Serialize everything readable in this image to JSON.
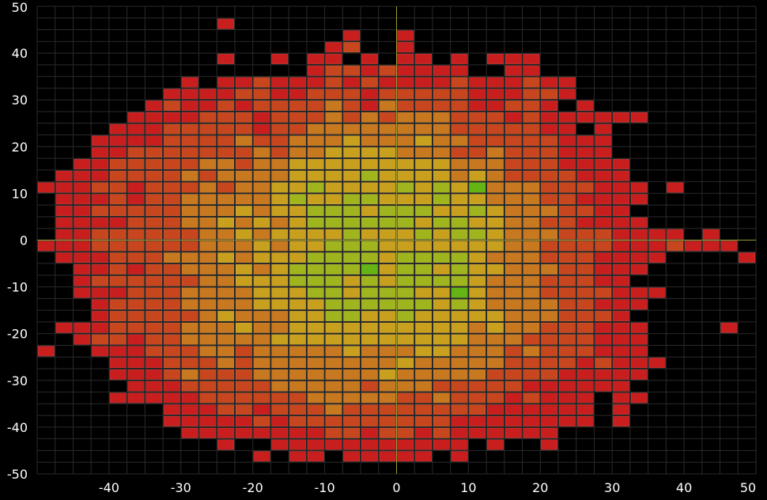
{
  "chart_data": {
    "type": "heatmap",
    "title": "",
    "xlabel": "",
    "ylabel": "",
    "xlim": [
      -50,
      50
    ],
    "ylim": [
      -50,
      50
    ],
    "bin_size": 2.5,
    "grid": true,
    "background": "#000000",
    "grid_color": "#2a2a2a",
    "colorscale": [
      "#c81e1e",
      "#c8461e",
      "#c8781e",
      "#c8a01e",
      "#a0b41e",
      "#64b414",
      "#1eb414"
    ],
    "x_ticks": [
      -40,
      -30,
      -20,
      -10,
      0,
      10,
      20,
      30,
      40,
      50
    ],
    "y_ticks": [
      50,
      40,
      30,
      20,
      10,
      0,
      -10,
      -20,
      -30,
      -40,
      -50
    ],
    "x_tick_labels": [
      "-40",
      "-30",
      "-20",
      "-10",
      "0",
      "10",
      "20",
      "30",
      "40",
      "50"
    ],
    "y_tick_labels": [
      "50",
      "40",
      "30",
      "20",
      "10",
      "0",
      "-10",
      "-20",
      "-30",
      "-40",
      "-50"
    ],
    "values": [
      [
        0,
        0,
        0,
        0,
        0,
        0,
        0,
        0,
        0,
        0,
        0,
        0,
        0,
        0,
        0,
        0,
        0,
        0,
        0,
        0,
        0,
        0,
        0,
        0,
        0,
        0,
        0,
        0,
        0,
        0,
        0,
        0,
        0,
        0,
        0,
        0,
        0,
        0,
        0,
        0
      ],
      [
        0,
        0,
        0,
        0,
        0,
        0,
        0,
        0,
        0,
        0,
        1,
        0,
        0,
        0,
        0,
        0,
        0,
        0,
        0,
        0,
        0,
        0,
        0,
        0,
        0,
        0,
        0,
        0,
        0,
        0,
        0,
        0,
        0,
        0,
        0,
        0,
        0,
        0,
        0,
        0
      ],
      [
        0,
        0,
        0,
        0,
        0,
        0,
        0,
        0,
        0,
        0,
        0,
        0,
        0,
        0,
        0,
        0,
        0,
        1,
        0,
        0,
        1,
        0,
        0,
        0,
        0,
        0,
        0,
        0,
        0,
        0,
        0,
        0,
        0,
        0,
        0,
        0,
        0,
        0,
        0,
        0
      ],
      [
        0,
        0,
        0,
        0,
        0,
        0,
        0,
        0,
        0,
        0,
        0,
        0,
        0,
        0,
        0,
        0,
        1,
        2,
        0,
        0,
        1,
        0,
        0,
        0,
        0,
        0,
        0,
        0,
        0,
        0,
        0,
        0,
        0,
        0,
        0,
        0,
        0,
        0,
        0,
        0
      ],
      [
        0,
        0,
        0,
        0,
        0,
        0,
        0,
        0,
        0,
        0,
        1,
        0,
        0,
        1,
        0,
        1,
        1,
        0,
        1,
        0,
        1,
        1,
        0,
        1,
        0,
        1,
        1,
        1,
        0,
        0,
        0,
        0,
        0,
        0,
        0,
        0,
        0,
        0,
        0,
        0
      ],
      [
        0,
        0,
        0,
        0,
        0,
        0,
        0,
        0,
        0,
        0,
        0,
        0,
        0,
        0,
        0,
        1,
        2,
        2,
        1,
        2,
        1,
        1,
        1,
        1,
        0,
        0,
        1,
        1,
        0,
        0,
        0,
        0,
        0,
        0,
        0,
        0,
        0,
        0,
        0,
        0
      ],
      [
        0,
        0,
        0,
        0,
        0,
        0,
        0,
        0,
        1,
        0,
        1,
        1,
        2,
        1,
        1,
        1,
        2,
        1,
        2,
        1,
        1,
        1,
        1,
        2,
        1,
        1,
        1,
        2,
        1,
        1,
        0,
        0,
        0,
        0,
        0,
        0,
        0,
        0,
        0,
        0
      ],
      [
        0,
        0,
        0,
        0,
        0,
        0,
        0,
        1,
        1,
        1,
        1,
        2,
        2,
        1,
        1,
        2,
        2,
        2,
        1,
        2,
        2,
        2,
        2,
        2,
        1,
        1,
        1,
        2,
        2,
        1,
        0,
        0,
        0,
        0,
        0,
        0,
        0,
        0,
        0,
        0
      ],
      [
        0,
        0,
        0,
        0,
        0,
        0,
        1,
        2,
        1,
        1,
        2,
        1,
        2,
        2,
        2,
        2,
        3,
        2,
        1,
        3,
        2,
        2,
        2,
        2,
        1,
        1,
        2,
        2,
        1,
        0,
        1,
        0,
        0,
        0,
        0,
        0,
        0,
        0,
        0,
        0
      ],
      [
        0,
        0,
        0,
        0,
        0,
        1,
        1,
        1,
        1,
        2,
        2,
        2,
        1,
        2,
        2,
        2,
        3,
        2,
        3,
        2,
        3,
        3,
        3,
        2,
        2,
        2,
        1,
        2,
        1,
        1,
        1,
        1,
        1,
        1,
        0,
        0,
        0,
        0,
        0,
        0
      ],
      [
        0,
        0,
        0,
        0,
        1,
        1,
        1,
        2,
        2,
        2,
        2,
        2,
        1,
        2,
        2,
        3,
        3,
        3,
        3,
        3,
        3,
        3,
        3,
        2,
        2,
        2,
        2,
        2,
        1,
        1,
        0,
        1,
        0,
        0,
        0,
        0,
        0,
        0,
        0,
        0
      ],
      [
        0,
        0,
        0,
        1,
        1,
        1,
        1,
        2,
        2,
        2,
        2,
        3,
        2,
        2,
        3,
        3,
        3,
        4,
        3,
        3,
        3,
        4,
        3,
        3,
        2,
        2,
        2,
        2,
        2,
        1,
        1,
        1,
        0,
        0,
        0,
        0,
        0,
        0,
        0,
        0
      ],
      [
        0,
        0,
        0,
        1,
        1,
        2,
        2,
        2,
        2,
        2,
        2,
        2,
        3,
        2,
        3,
        3,
        4,
        4,
        4,
        4,
        3,
        3,
        3,
        2,
        2,
        3,
        2,
        2,
        2,
        1,
        1,
        1,
        0,
        0,
        0,
        0,
        0,
        0,
        0,
        0
      ],
      [
        0,
        0,
        1,
        1,
        2,
        2,
        2,
        2,
        2,
        3,
        3,
        2,
        3,
        3,
        4,
        4,
        4,
        4,
        4,
        4,
        4,
        4,
        4,
        3,
        3,
        3,
        2,
        2,
        2,
        1,
        1,
        1,
        1,
        0,
        0,
        0,
        0,
        0,
        0,
        0
      ],
      [
        0,
        1,
        1,
        1,
        2,
        2,
        2,
        2,
        3,
        2,
        3,
        3,
        3,
        3,
        4,
        4,
        4,
        4,
        5,
        4,
        4,
        4,
        4,
        3,
        4,
        3,
        2,
        2,
        2,
        2,
        1,
        1,
        1,
        0,
        0,
        0,
        0,
        0,
        0,
        0
      ],
      [
        1,
        1,
        1,
        2,
        2,
        1,
        2,
        2,
        2,
        3,
        2,
        3,
        3,
        4,
        4,
        5,
        4,
        4,
        4,
        4,
        5,
        4,
        5,
        4,
        6,
        3,
        3,
        3,
        2,
        2,
        2,
        1,
        1,
        1,
        0,
        1,
        0,
        0,
        0,
        0
      ],
      [
        0,
        1,
        1,
        1,
        2,
        1,
        2,
        2,
        3,
        3,
        3,
        3,
        3,
        4,
        5,
        4,
        4,
        5,
        5,
        4,
        4,
        4,
        5,
        4,
        4,
        3,
        3,
        3,
        2,
        2,
        1,
        1,
        1,
        1,
        0,
        0,
        0,
        0,
        0,
        0
      ],
      [
        0,
        1,
        1,
        2,
        2,
        2,
        2,
        2,
        3,
        3,
        3,
        4,
        3,
        4,
        4,
        5,
        5,
        5,
        4,
        5,
        5,
        5,
        4,
        4,
        5,
        4,
        3,
        3,
        3,
        2,
        2,
        1,
        1,
        0,
        0,
        0,
        0,
        0,
        0,
        0
      ],
      [
        0,
        1,
        1,
        1,
        1,
        2,
        2,
        2,
        3,
        3,
        4,
        3,
        4,
        3,
        4,
        5,
        5,
        5,
        5,
        5,
        5,
        4,
        5,
        5,
        4,
        4,
        3,
        3,
        2,
        2,
        1,
        1,
        1,
        1,
        0,
        0,
        0,
        0,
        0,
        0
      ],
      [
        0,
        1,
        1,
        2,
        2,
        2,
        2,
        2,
        2,
        3,
        3,
        4,
        3,
        4,
        4,
        4,
        4,
        5,
        4,
        4,
        4,
        5,
        4,
        5,
        5,
        4,
        3,
        3,
        3,
        2,
        2,
        2,
        1,
        1,
        1,
        1,
        0,
        1,
        0,
        0
      ],
      [
        1,
        1,
        1,
        2,
        2,
        2,
        2,
        2,
        2,
        3,
        3,
        3,
        4,
        3,
        4,
        4,
        5,
        5,
        5,
        4,
        4,
        4,
        4,
        4,
        4,
        4,
        3,
        3,
        2,
        2,
        2,
        2,
        1,
        1,
        1,
        2,
        1,
        1,
        1,
        0
      ],
      [
        0,
        1,
        1,
        1,
        2,
        2,
        2,
        3,
        3,
        3,
        4,
        3,
        4,
        4,
        4,
        5,
        5,
        5,
        5,
        4,
        5,
        5,
        5,
        5,
        4,
        3,
        3,
        3,
        2,
        2,
        2,
        1,
        1,
        1,
        1,
        0,
        0,
        0,
        0,
        1
      ],
      [
        0,
        0,
        1,
        1,
        2,
        1,
        2,
        2,
        3,
        3,
        3,
        4,
        3,
        4,
        5,
        5,
        5,
        5,
        6,
        4,
        5,
        5,
        4,
        5,
        4,
        4,
        3,
        3,
        3,
        2,
        2,
        1,
        1,
        1,
        0,
        0,
        0,
        0,
        0,
        0
      ],
      [
        0,
        0,
        1,
        2,
        2,
        2,
        2,
        2,
        2,
        3,
        3,
        4,
        4,
        4,
        5,
        5,
        5,
        4,
        5,
        4,
        5,
        5,
        5,
        5,
        4,
        3,
        3,
        3,
        2,
        2,
        2,
        1,
        1,
        0,
        0,
        0,
        0,
        0,
        0,
        0
      ],
      [
        0,
        0,
        1,
        1,
        1,
        2,
        2,
        2,
        3,
        3,
        3,
        3,
        4,
        4,
        4,
        5,
        5,
        4,
        5,
        5,
        5,
        4,
        4,
        6,
        4,
        3,
        3,
        3,
        2,
        2,
        2,
        2,
        1,
        1,
        1,
        0,
        0,
        0,
        0,
        0
      ],
      [
        0,
        0,
        0,
        1,
        2,
        2,
        2,
        2,
        3,
        3,
        3,
        3,
        4,
        4,
        4,
        4,
        5,
        5,
        5,
        5,
        5,
        5,
        4,
        5,
        4,
        3,
        3,
        3,
        3,
        2,
        2,
        1,
        1,
        1,
        0,
        0,
        0,
        0,
        0,
        0
      ],
      [
        0,
        0,
        0,
        1,
        2,
        2,
        2,
        2,
        2,
        3,
        4,
        3,
        3,
        3,
        4,
        4,
        5,
        5,
        4,
        4,
        5,
        4,
        4,
        4,
        4,
        4,
        3,
        3,
        3,
        2,
        2,
        2,
        1,
        0,
        0,
        0,
        0,
        0,
        0,
        0
      ],
      [
        0,
        1,
        1,
        1,
        2,
        2,
        2,
        2,
        3,
        3,
        3,
        4,
        3,
        3,
        4,
        4,
        4,
        4,
        4,
        4,
        4,
        4,
        4,
        4,
        3,
        4,
        3,
        3,
        2,
        2,
        2,
        1,
        1,
        1,
        0,
        0,
        0,
        0,
        1,
        0
      ],
      [
        0,
        0,
        1,
        2,
        2,
        1,
        2,
        2,
        3,
        3,
        3,
        3,
        3,
        4,
        4,
        4,
        4,
        4,
        4,
        4,
        4,
        4,
        4,
        4,
        3,
        3,
        3,
        2,
        2,
        2,
        2,
        1,
        1,
        1,
        0,
        0,
        0,
        0,
        0,
        0
      ],
      [
        1,
        0,
        0,
        1,
        1,
        1,
        2,
        2,
        2,
        3,
        3,
        2,
        3,
        3,
        3,
        3,
        3,
        4,
        3,
        3,
        3,
        4,
        4,
        3,
        3,
        3,
        2,
        3,
        2,
        2,
        2,
        1,
        1,
        1,
        0,
        0,
        0,
        0,
        0,
        0
      ],
      [
        0,
        0,
        0,
        0,
        1,
        1,
        1,
        2,
        2,
        2,
        3,
        2,
        3,
        3,
        3,
        3,
        3,
        3,
        3,
        3,
        4,
        3,
        3,
        3,
        3,
        3,
        2,
        2,
        2,
        2,
        1,
        2,
        1,
        1,
        1,
        0,
        0,
        0,
        0,
        0
      ],
      [
        0,
        0,
        0,
        0,
        1,
        1,
        1,
        2,
        3,
        2,
        2,
        2,
        3,
        3,
        3,
        3,
        3,
        3,
        3,
        4,
        3,
        3,
        3,
        3,
        3,
        2,
        2,
        2,
        2,
        1,
        1,
        1,
        1,
        1,
        0,
        0,
        0,
        0,
        0,
        0
      ],
      [
        0,
        0,
        0,
        0,
        0,
        1,
        1,
        1,
        2,
        2,
        2,
        2,
        2,
        3,
        3,
        3,
        3,
        3,
        2,
        3,
        3,
        3,
        2,
        2,
        2,
        2,
        2,
        1,
        1,
        1,
        1,
        1,
        1,
        0,
        0,
        0,
        0,
        0,
        0,
        0
      ],
      [
        0,
        0,
        0,
        0,
        1,
        1,
        1,
        1,
        1,
        2,
        2,
        2,
        2,
        2,
        2,
        3,
        3,
        3,
        3,
        3,
        2,
        2,
        3,
        2,
        2,
        2,
        1,
        2,
        1,
        1,
        1,
        0,
        1,
        1,
        0,
        0,
        0,
        0,
        0,
        0
      ],
      [
        0,
        0,
        0,
        0,
        0,
        0,
        0,
        1,
        1,
        1,
        2,
        2,
        1,
        2,
        2,
        2,
        3,
        2,
        2,
        2,
        2,
        2,
        2,
        2,
        2,
        1,
        1,
        1,
        1,
        1,
        1,
        0,
        1,
        0,
        0,
        0,
        0,
        0,
        0,
        0
      ],
      [
        0,
        0,
        0,
        0,
        0,
        0,
        0,
        1,
        1,
        1,
        1,
        1,
        2,
        1,
        2,
        2,
        2,
        2,
        2,
        2,
        2,
        2,
        2,
        1,
        1,
        1,
        1,
        1,
        1,
        1,
        1,
        0,
        1,
        0,
        0,
        0,
        0,
        0,
        0,
        0
      ],
      [
        0,
        0,
        0,
        0,
        0,
        0,
        0,
        0,
        1,
        1,
        1,
        1,
        1,
        1,
        1,
        1,
        2,
        2,
        1,
        2,
        2,
        1,
        2,
        1,
        1,
        1,
        1,
        1,
        1,
        0,
        0,
        0,
        0,
        0,
        0,
        0,
        0,
        0,
        0,
        0
      ],
      [
        0,
        0,
        0,
        0,
        0,
        0,
        0,
        0,
        0,
        0,
        1,
        0,
        0,
        1,
        1,
        1,
        1,
        1,
        1,
        1,
        1,
        1,
        1,
        1,
        0,
        1,
        0,
        0,
        1,
        0,
        0,
        0,
        0,
        0,
        0,
        0,
        0,
        0,
        0,
        0
      ],
      [
        0,
        0,
        0,
        0,
        0,
        0,
        0,
        0,
        0,
        0,
        0,
        0,
        1,
        0,
        1,
        1,
        0,
        1,
        1,
        1,
        1,
        1,
        0,
        1,
        0,
        0,
        0,
        0,
        0,
        0,
        0,
        0,
        0,
        0,
        0,
        0,
        0,
        0,
        0,
        0
      ],
      [
        0,
        0,
        0,
        0,
        0,
        0,
        0,
        0,
        0,
        0,
        0,
        0,
        0,
        0,
        0,
        0,
        0,
        0,
        0,
        0,
        0,
        0,
        0,
        0,
        0,
        0,
        0,
        0,
        0,
        0,
        0,
        0,
        0,
        0,
        0,
        0,
        0,
        0,
        0,
        0
      ]
    ]
  }
}
